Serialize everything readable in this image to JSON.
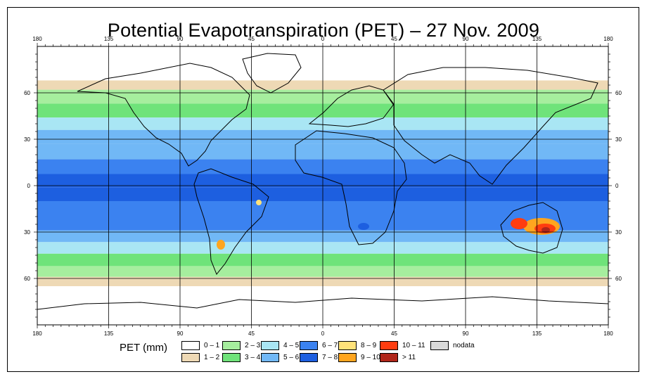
{
  "title": "Potential Evapotranspiration (PET) – 27 Nov. 2009",
  "map": {
    "lon_range": [
      -180,
      180
    ],
    "lat_range": [
      -90,
      90
    ],
    "lon_ticks": [
      -180,
      -135,
      -90,
      -45,
      0,
      45,
      90,
      135,
      180
    ],
    "lat_ticks": [
      60,
      30,
      0,
      -30,
      -60
    ],
    "top_tick_labels": [
      "180",
      "135",
      "90",
      "45",
      "0",
      "45",
      "90",
      "135",
      "180"
    ],
    "bottom_tick_labels": [
      "180",
      "135",
      "90",
      "45",
      "0",
      "45",
      "90",
      "135",
      "180"
    ],
    "left_tick_labels": [
      "60",
      "30",
      "0",
      "30",
      "60"
    ],
    "right_tick_labels": [
      "60",
      "30",
      "0",
      "30",
      "60"
    ],
    "zonal_pet_profile": [
      {
        "lat": 78,
        "cls": 0
      },
      {
        "lat": 70,
        "cls": 0
      },
      {
        "lat": 66,
        "cls": 1
      },
      {
        "lat": 58,
        "cls": 2
      },
      {
        "lat": 48,
        "cls": 3
      },
      {
        "lat": 40,
        "cls": 4
      },
      {
        "lat": 32,
        "cls": 5
      },
      {
        "lat": 22,
        "cls": 5
      },
      {
        "lat": 12,
        "cls": 6
      },
      {
        "lat": 3,
        "cls": 7
      },
      {
        "lat": -5,
        "cls": 7
      },
      {
        "lat": -15,
        "cls": 6
      },
      {
        "lat": -25,
        "cls": 6
      },
      {
        "lat": -33,
        "cls": 5
      },
      {
        "lat": -40,
        "cls": 4
      },
      {
        "lat": -48,
        "cls": 3
      },
      {
        "lat": -56,
        "cls": 2
      },
      {
        "lat": -62,
        "cls": 1
      },
      {
        "lat": -68,
        "cls": 0
      },
      {
        "lat": -80,
        "cls": 0
      }
    ]
  },
  "legend": {
    "title": "PET (mm)",
    "items": [
      {
        "label": "0 – 1",
        "color": "#ffffff"
      },
      {
        "label": "1 – 2",
        "color": "#eed9b5"
      },
      {
        "label": "2 – 3",
        "color": "#a6ee9e"
      },
      {
        "label": "3 – 4",
        "color": "#6fe37a"
      },
      {
        "label": "4 – 5",
        "color": "#a9e6f4"
      },
      {
        "label": "5 – 6",
        "color": "#71b8f6"
      },
      {
        "label": "6 – 7",
        "color": "#3b82f0"
      },
      {
        "label": "7 – 8",
        "color": "#1d5fe0"
      },
      {
        "label": "8 – 9",
        "color": "#ffe27a"
      },
      {
        "label": "9 – 10",
        "color": "#ffa51f"
      },
      {
        "label": "10 – 11",
        "color": "#ff3d10"
      },
      {
        "label": "> 11",
        "color": "#b0261a"
      },
      {
        "label": "nodata",
        "color": "#d9d9d9"
      }
    ]
  }
}
